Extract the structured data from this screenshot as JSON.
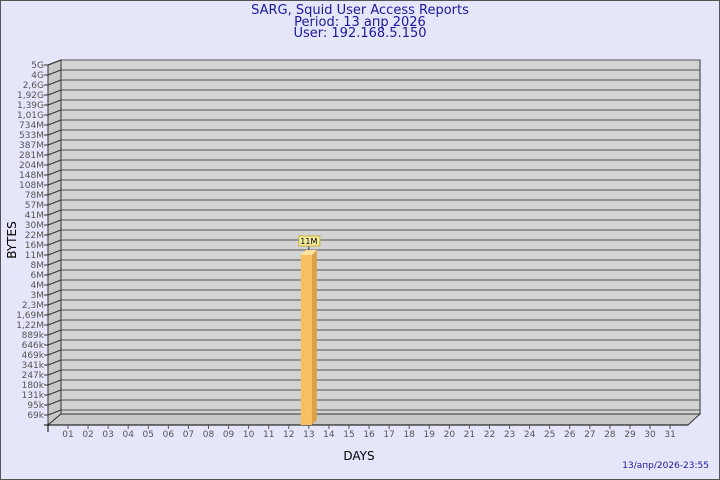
{
  "header": {
    "title": "SARG, Squid User Access Reports",
    "period": "Period: 13 апр 2026",
    "user": "User: 192.168.5.150"
  },
  "footer": {
    "timestamp": "13/апр/2026-23:55"
  },
  "colors": {
    "background": "#e6e6fa",
    "plot": "#d3d3d3",
    "bar": "#f8c060",
    "bar_side": "#e0a048",
    "title": "#1a1a9a"
  },
  "chart_data": {
    "type": "bar",
    "xlabel": "DAYS",
    "ylabel": "BYTES",
    "y_tick_labels": [
      "5G",
      "4G",
      "2,6G",
      "1,92G",
      "1,39G",
      "1,01G",
      "734M",
      "533M",
      "387M",
      "281M",
      "204M",
      "148M",
      "108M",
      "78M",
      "57M",
      "41M",
      "30M",
      "22M",
      "16M",
      "11M",
      "8M",
      "6M",
      "4M",
      "3M",
      "2,3M",
      "1,69M",
      "1,22M",
      "889k",
      "646k",
      "469k",
      "341k",
      "247k",
      "180k",
      "131k",
      "95k",
      "69k"
    ],
    "y_scale": "log",
    "categories": [
      "01",
      "02",
      "03",
      "04",
      "05",
      "06",
      "07",
      "08",
      "09",
      "10",
      "11",
      "12",
      "13",
      "14",
      "15",
      "16",
      "17",
      "18",
      "19",
      "20",
      "21",
      "22",
      "23",
      "24",
      "25",
      "26",
      "27",
      "28",
      "29",
      "30",
      "31"
    ],
    "bars": [
      {
        "day": "13",
        "value": "11M",
        "label": "11M"
      }
    ],
    "grid": true
  }
}
